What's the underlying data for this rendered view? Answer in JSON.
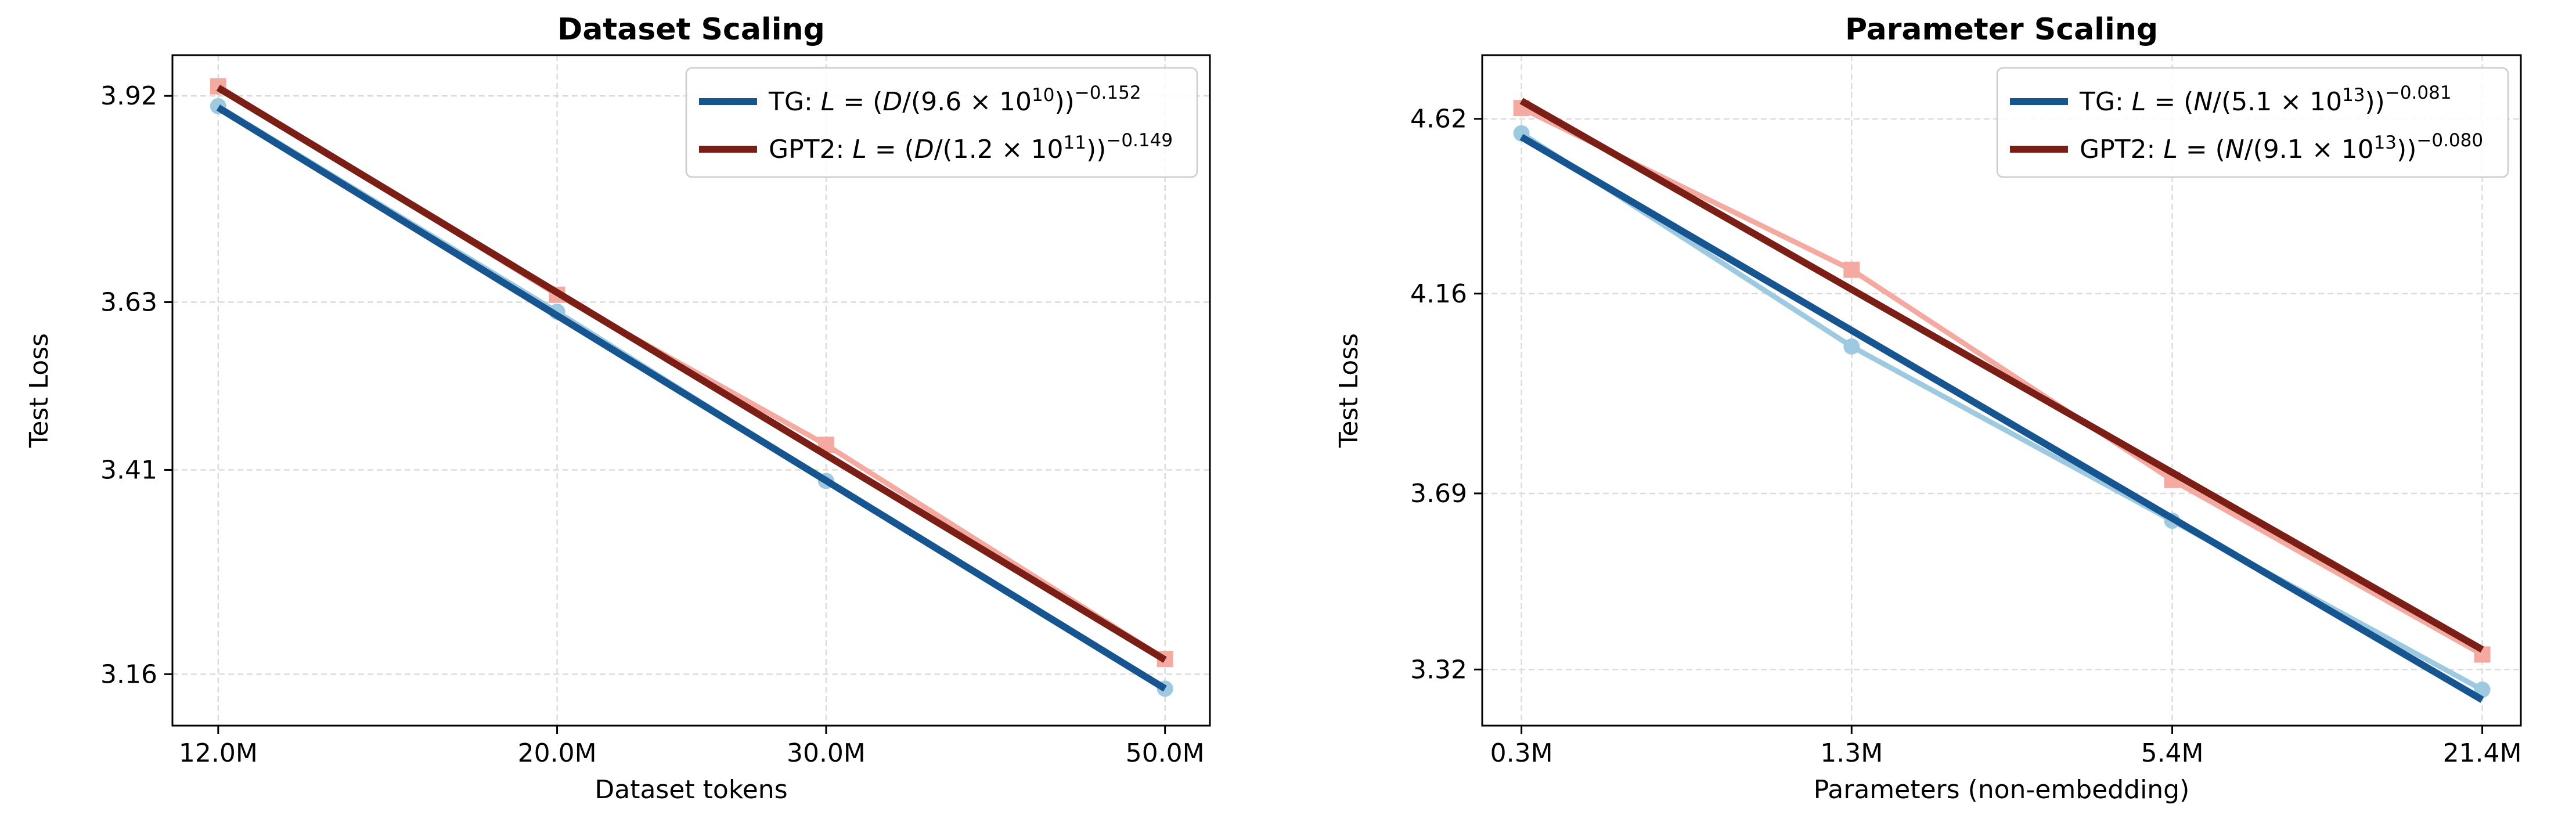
{
  "chart_data": [
    {
      "type": "line",
      "title": "Dataset Scaling",
      "xlabel": "Dataset tokens",
      "ylabel": "Test Loss",
      "x_scale": "log",
      "y_scale": "log",
      "xlim": [
        11.2,
        53.5
      ],
      "ylim": [
        3.1,
        3.98
      ],
      "grid": true,
      "legend_position": "top-right",
      "x_ticks": [
        {
          "value": 12,
          "label": "12.0M"
        },
        {
          "value": 20,
          "label": "20.0M"
        },
        {
          "value": 30,
          "label": "30.0M"
        },
        {
          "value": 50,
          "label": "50.0M"
        }
      ],
      "y_ticks": [
        {
          "value": 3.16,
          "label": "3.16"
        },
        {
          "value": 3.41,
          "label": "3.41"
        },
        {
          "value": 3.63,
          "label": "3.63"
        },
        {
          "value": 3.92,
          "label": "3.92"
        }
      ],
      "series": [
        {
          "name": "TG",
          "kind": "data",
          "marker": "circle",
          "color": "#9ecae1",
          "x": [
            12,
            20,
            30,
            50
          ],
          "y": [
            3.905,
            3.617,
            3.396,
            3.143
          ]
        },
        {
          "name": "GPT2",
          "kind": "data",
          "marker": "square",
          "color": "#f4aaa0",
          "x": [
            12,
            20,
            30,
            50
          ],
          "y": [
            3.934,
            3.64,
            3.442,
            3.178
          ]
        },
        {
          "name": "TG fit",
          "kind": "fit",
          "color": "#16558f",
          "x": [
            12,
            50
          ],
          "y": [
            3.903,
            3.143
          ]
        },
        {
          "name": "GPT2 fit",
          "kind": "fit",
          "color": "#7a1e16",
          "x": [
            12,
            50
          ],
          "y": [
            3.932,
            3.177
          ]
        }
      ],
      "legend": [
        {
          "color": "#16558f",
          "pre": "TG: ",
          "var": "D",
          "coef": "9.6",
          "exp10": "10",
          "alpha": "−0.152"
        },
        {
          "color": "#7a1e16",
          "pre": "GPT2: ",
          "var": "D",
          "coef": "1.2",
          "exp10": "11",
          "alpha": "−0.149"
        }
      ]
    },
    {
      "type": "line",
      "title": "Parameter Scaling",
      "xlabel": "Parameters (non-embedding)",
      "ylabel": "Test Loss",
      "x_scale": "log",
      "y_scale": "log",
      "xlim": [
        0.252,
        25.4
      ],
      "ylim": [
        3.21,
        4.8
      ],
      "grid": true,
      "legend_position": "top-right",
      "x_ticks": [
        {
          "value": 0.3,
          "label": "0.3M"
        },
        {
          "value": 1.3,
          "label": "1.3M"
        },
        {
          "value": 5.4,
          "label": "5.4M"
        },
        {
          "value": 21.4,
          "label": "21.4M"
        }
      ],
      "y_ticks": [
        {
          "value": 3.32,
          "label": "3.32"
        },
        {
          "value": 3.69,
          "label": "3.69"
        },
        {
          "value": 4.16,
          "label": "4.16"
        },
        {
          "value": 4.62,
          "label": "4.62"
        }
      ],
      "series": [
        {
          "name": "TG",
          "kind": "data",
          "marker": "circle",
          "color": "#9ecae1",
          "x": [
            0.3,
            1.3,
            5.4,
            21.4
          ],
          "y": [
            4.58,
            4.03,
            3.63,
            3.28
          ]
        },
        {
          "name": "GPT2",
          "kind": "data",
          "marker": "square",
          "color": "#f4aaa0",
          "x": [
            0.3,
            1.3,
            5.4,
            21.4
          ],
          "y": [
            4.65,
            4.22,
            3.72,
            3.35
          ]
        },
        {
          "name": "TG fit",
          "kind": "fit",
          "color": "#16558f",
          "x": [
            0.3,
            21.4
          ],
          "y": [
            4.57,
            3.26
          ]
        },
        {
          "name": "GPT2 fit",
          "kind": "fit",
          "color": "#7a1e16",
          "x": [
            0.3,
            21.4
          ],
          "y": [
            4.67,
            3.36
          ]
        }
      ],
      "legend": [
        {
          "color": "#16558f",
          "pre": "TG: ",
          "var": "N",
          "coef": "5.1",
          "exp10": "13",
          "alpha": "−0.081"
        },
        {
          "color": "#7a1e16",
          "pre": "GPT2: ",
          "var": "N",
          "coef": "9.1",
          "exp10": "13",
          "alpha": "−0.080"
        }
      ]
    }
  ]
}
